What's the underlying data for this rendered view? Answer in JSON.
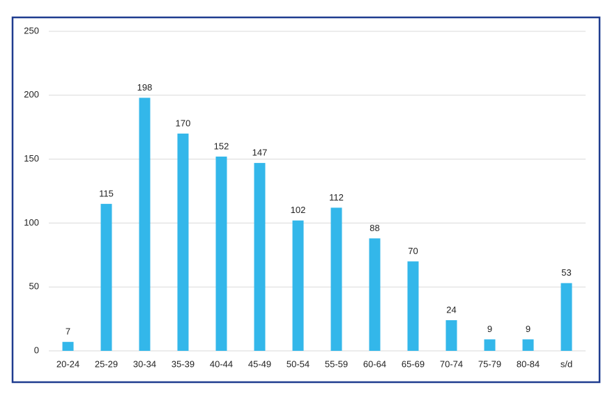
{
  "chart_data": {
    "type": "bar",
    "categories": [
      "20-24",
      "25-29",
      "30-34",
      "35-39",
      "40-44",
      "45-49",
      "50-54",
      "55-59",
      "60-64",
      "65-69",
      "70-74",
      "75-79",
      "80-84",
      "s/d"
    ],
    "values": [
      7,
      115,
      198,
      170,
      152,
      147,
      102,
      112,
      88,
      70,
      24,
      9,
      9,
      53
    ],
    "color": "#33b7ea",
    "ylim": [
      0,
      250
    ],
    "yticks": [
      0,
      50,
      100,
      150,
      200,
      250
    ],
    "grid": true
  }
}
